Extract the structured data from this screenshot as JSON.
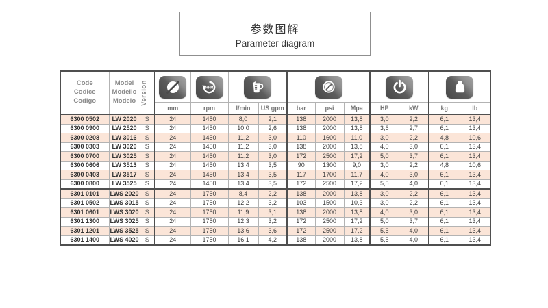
{
  "title": {
    "zh": "参数图解",
    "en": "Parameter diagram"
  },
  "table": {
    "header": {
      "code": [
        "Code",
        "Codice",
        "Codigo"
      ],
      "model": [
        "Model",
        "Modello",
        "Modelo"
      ],
      "version": "Version",
      "icons": [
        "diameter",
        "rpm",
        "flow",
        "pressure",
        "power",
        "weight"
      ]
    },
    "units": [
      "mm",
      "rpm",
      "l/min",
      "US gpm",
      "bar",
      "psi",
      "Mpa",
      "HP",
      "kW",
      "kg",
      "lb"
    ],
    "columns": [
      "code",
      "model",
      "version",
      "mm",
      "rpm",
      "l_min",
      "us_gpm",
      "bar",
      "psi",
      "mpa",
      "hp",
      "kw",
      "kg",
      "lb"
    ],
    "rows": [
      [
        "6300 0502",
        "LW 2020",
        "S",
        "24",
        "1450",
        "8,0",
        "2,1",
        "138",
        "2000",
        "13,8",
        "3,0",
        "2,2",
        "6,1",
        "13,4"
      ],
      [
        "6300 0900",
        "LW 2520",
        "S",
        "24",
        "1450",
        "10,0",
        "2,6",
        "138",
        "2000",
        "13,8",
        "3,6",
        "2,7",
        "6,1",
        "13,4"
      ],
      [
        "6300 0208",
        "LW 3016",
        "S",
        "24",
        "1450",
        "11,2",
        "3,0",
        "110",
        "1600",
        "11,0",
        "3,0",
        "2,2",
        "4,8",
        "10,6"
      ],
      [
        "6300 0303",
        "LW 3020",
        "S",
        "24",
        "1450",
        "11,2",
        "3,0",
        "138",
        "2000",
        "13,8",
        "4,0",
        "3,0",
        "6,1",
        "13,4"
      ],
      [
        "6300 0700",
        "LW 3025",
        "S",
        "24",
        "1450",
        "11,2",
        "3,0",
        "172",
        "2500",
        "17,2",
        "5,0",
        "3,7",
        "6,1",
        "13,4"
      ],
      [
        "6300 0606",
        "LW 3513",
        "S",
        "24",
        "1450",
        "13,4",
        "3,5",
        "90",
        "1300",
        "9,0",
        "3,0",
        "2,2",
        "4,8",
        "10,6"
      ],
      [
        "6300 0403",
        "LW 3517",
        "S",
        "24",
        "1450",
        "13,4",
        "3,5",
        "117",
        "1700",
        "11,7",
        "4,0",
        "3,0",
        "6,1",
        "13,4"
      ],
      [
        "6300 0800",
        "LW 3525",
        "S",
        "24",
        "1450",
        "13,4",
        "3,5",
        "172",
        "2500",
        "17,2",
        "5,5",
        "4,0",
        "6,1",
        "13,4"
      ],
      [
        "6301 0101",
        "LWS 2020",
        "S",
        "24",
        "1750",
        "8,4",
        "2,2",
        "138",
        "2000",
        "13,8",
        "3,0",
        "2,2",
        "6,1",
        "13,4"
      ],
      [
        "6301 0502",
        "LWS 3015",
        "S",
        "24",
        "1750",
        "12,2",
        "3,2",
        "103",
        "1500",
        "10,3",
        "3,0",
        "2,2",
        "6,1",
        "13,4"
      ],
      [
        "6301 0601",
        "LWS 3020",
        "S",
        "24",
        "1750",
        "11,9",
        "3,1",
        "138",
        "2000",
        "13,8",
        "4,0",
        "3,0",
        "6,1",
        "13,4"
      ],
      [
        "6301 1300",
        "LWS 3025",
        "S",
        "24",
        "1750",
        "12,3",
        "3,2",
        "172",
        "2500",
        "17,2",
        "5,0",
        "3,7",
        "6,1",
        "13,4"
      ],
      [
        "6301 1201",
        "LWS 3525",
        "S",
        "24",
        "1750",
        "13,6",
        "3,6",
        "172",
        "2500",
        "17,2",
        "5,5",
        "4,0",
        "6,1",
        "13,4"
      ],
      [
        "6301 1400",
        "LWS 4020",
        "S",
        "24",
        "1750",
        "16,1",
        "4,2",
        "138",
        "2000",
        "13,8",
        "5,5",
        "4,0",
        "6,1",
        "13,4"
      ]
    ]
  },
  "colors": {
    "row_highlight": "#fbe5d8",
    "border_dark": "#4f4f4f",
    "border_light": "#b3b3b3",
    "icon_badge": "#4a4a4a",
    "text_primary": "#3d3d3d",
    "text_secondary": "#8a8a8a"
  }
}
